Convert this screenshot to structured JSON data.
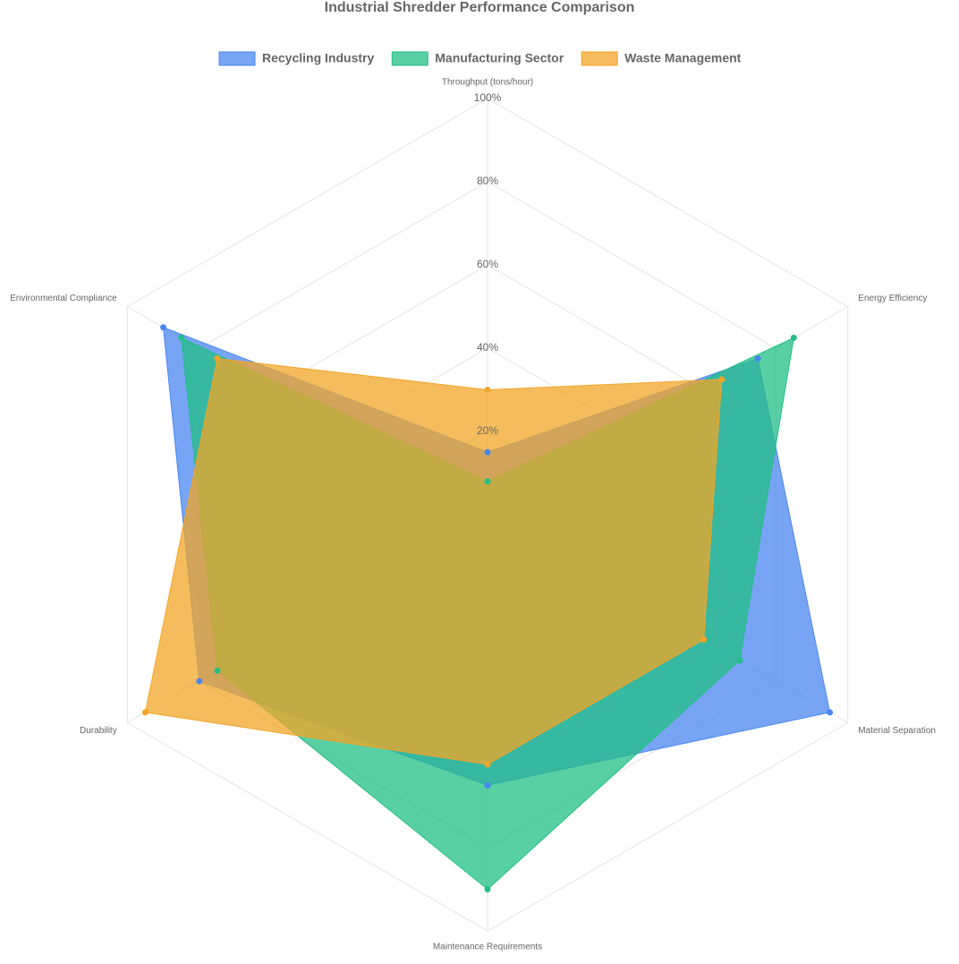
{
  "chart_data": {
    "type": "radar",
    "title": "Industrial Shredder Performance Comparison",
    "categories": [
      "Throughput (tons/hour)",
      "Energy Efficiency",
      "Material Separation",
      "Maintenance Requirements",
      "Durability",
      "Environmental Compliance"
    ],
    "series": [
      {
        "name": "Recycling Industry",
        "color": "#4a86f0",
        "values": [
          15,
          75,
          95,
          65,
          80,
          90
        ]
      },
      {
        "name": "Manufacturing Sector",
        "color": "#22bf86",
        "values": [
          8,
          85,
          70,
          90,
          75,
          85
        ]
      },
      {
        "name": "Waste Management",
        "color": "#f2a527",
        "values": [
          30,
          65,
          60,
          60,
          95,
          75
        ]
      }
    ],
    "rlim": [
      0,
      100
    ],
    "rticks": [
      {
        "value": 20,
        "label": "20%"
      },
      {
        "value": 40,
        "label": "40%"
      },
      {
        "value": 60,
        "label": "60%"
      },
      {
        "value": 80,
        "label": "80%"
      },
      {
        "value": 100,
        "label": "100%"
      }
    ],
    "grid": true
  }
}
